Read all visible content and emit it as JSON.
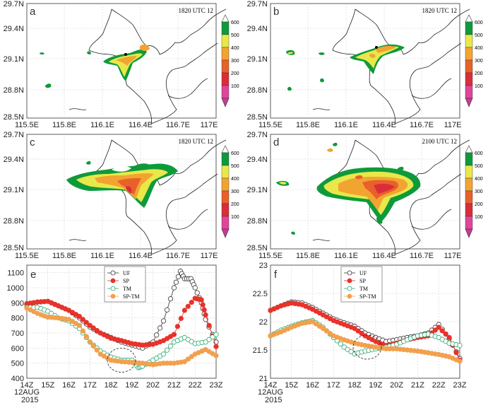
{
  "colors": {
    "c600": "#0e9a3b",
    "c500": "#e8e84a",
    "c400": "#f2a431",
    "c300": "#e8612a",
    "c200": "#d92d3a",
    "c100": "#e0459a",
    "top": "#ffffff",
    "bottom": "#c63b93",
    "UF": "#333333",
    "SP": "#e8322a",
    "TM": "#2aa86e",
    "SPTM": "#f2a04e"
  },
  "chart_data": [
    {
      "type": "map",
      "panel": "a",
      "title": "1820 UTC 12",
      "x_ticks": [
        "115.5E",
        "115.8E",
        "116.1E",
        "116.4E",
        "116.7E",
        "117E"
      ],
      "y_ticks": [
        "29.7N",
        "29.4N",
        "29.1N",
        "28.8N",
        "28.5N"
      ],
      "colorbar": [
        "600",
        "500",
        "400",
        "300",
        "200",
        "100"
      ]
    },
    {
      "type": "map",
      "panel": "b",
      "title": "1820 UTC 12",
      "x_ticks": [
        "115.5E",
        "115.8E",
        "116.1E",
        "116.4E",
        "116.7E",
        "117E"
      ],
      "y_ticks": [
        "29.7N",
        "29.4N",
        "29.1N",
        "28.8N",
        "28.5N"
      ],
      "colorbar": [
        "600",
        "500",
        "400",
        "300",
        "200",
        "100"
      ]
    },
    {
      "type": "map",
      "panel": "c",
      "title": "1820 UTC 12",
      "x_ticks": [
        "115.5E",
        "115.8E",
        "116.1E",
        "116.4E",
        "116.7E",
        "117E"
      ],
      "y_ticks": [
        "29.7N",
        "29.4N",
        "29.1N",
        "28.8N",
        "28.5N"
      ],
      "colorbar": [
        "600",
        "500",
        "400",
        "300",
        "200",
        "100"
      ]
    },
    {
      "type": "map",
      "panel": "d",
      "title": "2100 UTC 12",
      "x_ticks": [
        "115.5E",
        "115.8E",
        "116.1E",
        "116.4E",
        "116.7E",
        "117E"
      ],
      "y_ticks": [
        "29.7N",
        "29.4N",
        "29.1N",
        "28.8N",
        "28.5N"
      ],
      "colorbar": [
        "600",
        "500",
        "400",
        "300",
        "200",
        "100"
      ]
    },
    {
      "type": "line",
      "panel": "e",
      "x_ticks": [
        "14Z",
        "15Z",
        "16Z",
        "17Z",
        "18Z",
        "19Z",
        "20Z",
        "21Z",
        "22Z",
        "23Z"
      ],
      "x_sub": "12AUG",
      "x_year": "2015",
      "x_range": [
        14,
        23
      ],
      "y_ticks": [
        "1100",
        "1000",
        "900",
        "800",
        "700",
        "600",
        "500",
        "400"
      ],
      "ylim": [
        400,
        1150
      ],
      "series": [
        {
          "name": "UF",
          "x": [
            14,
            14.5,
            15,
            15.5,
            16,
            16.5,
            17,
            17.5,
            18,
            18.5,
            19,
            19.5,
            20,
            20.5,
            21,
            21.3,
            21.5,
            21.8,
            22,
            22.3,
            22.5,
            23
          ],
          "values": [
            890,
            905,
            910,
            880,
            850,
            800,
            740,
            700,
            670,
            640,
            620,
            600,
            640,
            780,
            1000,
            1110,
            1060,
            1060,
            1000,
            900,
            790,
            640
          ]
        },
        {
          "name": "SP",
          "x": [
            14,
            14.5,
            15,
            15.5,
            16,
            16.5,
            17,
            17.5,
            18,
            18.5,
            19,
            19.5,
            20,
            20.5,
            21,
            21.5,
            22,
            22.3,
            22.5,
            23
          ],
          "values": [
            895,
            905,
            910,
            880,
            850,
            810,
            750,
            700,
            665,
            650,
            630,
            620,
            625,
            650,
            690,
            850,
            930,
            920,
            820,
            610
          ]
        },
        {
          "name": "TM",
          "x": [
            14,
            14.5,
            15,
            15.5,
            16,
            16.5,
            17,
            17.5,
            18,
            18.5,
            19,
            19.3,
            19.5,
            20,
            20.5,
            21,
            21.5,
            22,
            22.5,
            23
          ],
          "values": [
            870,
            870,
            845,
            800,
            780,
            730,
            640,
            580,
            540,
            520,
            520,
            470,
            480,
            520,
            560,
            640,
            670,
            630,
            640,
            690
          ]
        },
        {
          "name": "SP-TM",
          "x": [
            14,
            14.5,
            15,
            15.5,
            16,
            16.5,
            17,
            17.5,
            18,
            18.5,
            19,
            19.5,
            20,
            20.5,
            21,
            21.5,
            22,
            22.5,
            23
          ],
          "values": [
            865,
            830,
            805,
            800,
            790,
            750,
            640,
            560,
            520,
            510,
            505,
            500,
            490,
            500,
            500,
            510,
            560,
            590,
            550
          ]
        }
      ]
    },
    {
      "type": "line",
      "panel": "f",
      "x_ticks": [
        "14Z",
        "15Z",
        "16Z",
        "17Z",
        "18Z",
        "19Z",
        "20Z",
        "21Z",
        "22Z",
        "23Z"
      ],
      "x_sub": "12AUG",
      "x_year": "2015",
      "x_range": [
        14,
        23
      ],
      "y_ticks": [
        "23",
        "22.5",
        "22",
        "21.5",
        "21"
      ],
      "ylim": [
        21,
        23
      ],
      "series": [
        {
          "name": "UF",
          "x": [
            14,
            14.5,
            15,
            15.5,
            16,
            16.5,
            17,
            17.5,
            18,
            18.5,
            19,
            19.5,
            20,
            20.5,
            21,
            21.5,
            22,
            22.5,
            23
          ],
          "values": [
            22.2,
            22.28,
            22.35,
            22.33,
            22.25,
            22.15,
            22.05,
            21.98,
            21.92,
            21.8,
            21.72,
            21.65,
            21.68,
            21.72,
            21.75,
            21.8,
            21.95,
            21.7,
            21.35
          ]
        },
        {
          "name": "SP",
          "x": [
            14,
            14.5,
            15,
            15.5,
            16,
            16.5,
            17,
            17.5,
            18,
            18.5,
            19,
            19.5,
            20,
            20.5,
            21,
            21.5,
            22,
            22.5,
            23
          ],
          "values": [
            22.2,
            22.28,
            22.33,
            22.3,
            22.22,
            22.12,
            22.02,
            21.95,
            21.88,
            21.75,
            21.65,
            21.58,
            21.62,
            21.68,
            21.72,
            21.75,
            21.9,
            21.72,
            21.32
          ]
        },
        {
          "name": "TM",
          "x": [
            14,
            14.5,
            15,
            15.5,
            16,
            16.5,
            17,
            17.5,
            18,
            18.5,
            19,
            19.5,
            20,
            20.5,
            21,
            21.5,
            22,
            22.5,
            23
          ],
          "values": [
            21.75,
            21.85,
            21.92,
            21.98,
            22.02,
            21.9,
            21.72,
            21.55,
            21.43,
            21.48,
            21.52,
            21.55,
            21.6,
            21.68,
            21.75,
            21.78,
            21.72,
            21.62,
            21.58
          ]
        },
        {
          "name": "SP-TM",
          "x": [
            14,
            14.5,
            15,
            15.5,
            16,
            16.5,
            17,
            17.5,
            18,
            18.5,
            19,
            19.5,
            20,
            20.5,
            21,
            21.5,
            22,
            22.5,
            23
          ],
          "values": [
            21.75,
            21.82,
            21.9,
            21.97,
            22.0,
            21.88,
            21.75,
            21.68,
            21.62,
            21.58,
            21.55,
            21.52,
            21.52,
            21.5,
            21.48,
            21.45,
            21.42,
            21.38,
            21.3
          ]
        }
      ]
    }
  ]
}
